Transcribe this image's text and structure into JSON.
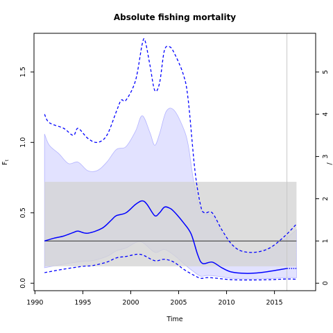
{
  "chart_data": {
    "type": "line",
    "title": "Absolute fishing mortality",
    "xlabel": "Time",
    "ylabel_main": "F",
    "ylabel_sub": "t",
    "xlim": [
      1989.9,
      2019.3
    ],
    "ylim": [
      -0.053,
      1.775
    ],
    "ylim_right": [
      -0.177,
      5.917
    ],
    "x_ticks": [
      1990,
      1995,
      2000,
      2005,
      2010,
      2015
    ],
    "y_ticks": [
      0.0,
      0.5,
      1.0,
      1.5
    ],
    "y_tick_labels": [
      "0.0",
      "0.5",
      "1.0",
      "1.5"
    ],
    "y_right_ticks": [
      0,
      1,
      2,
      3,
      4,
      5
    ],
    "y_right_tick_labels": [
      "0",
      "1",
      "2",
      "3",
      "4",
      "5"
    ],
    "right_axis_partial_label": "/",
    "ref_band": {
      "x": [
        1991.0,
        2017.3
      ],
      "y": [
        0.12,
        0.72
      ]
    },
    "ref_line": {
      "y": 0.3,
      "x": [
        1991.0,
        2017.3
      ]
    },
    "vertical_line": {
      "x": 2016.3
    },
    "series": [
      {
        "role": "median",
        "x": [
          1991.0,
          1992.0,
          1993.0,
          1994.0,
          1994.5,
          1995.5,
          1997.0,
          1998.0,
          1998.5,
          1999.5,
          2000.5,
          2001.2,
          2001.7,
          2002.5,
          2003.0,
          2003.5,
          2004.0,
          2004.5,
          2005.5,
          2006.3,
          2007.0,
          2007.5,
          2008.5,
          2009.5,
          2010.5,
          2012.0,
          2013.5,
          2015.0,
          2016.3
        ],
        "values": [
          0.3,
          0.32,
          0.335,
          0.36,
          0.37,
          0.355,
          0.39,
          0.45,
          0.48,
          0.5,
          0.56,
          0.585,
          0.56,
          0.48,
          0.5,
          0.54,
          0.535,
          0.51,
          0.43,
          0.35,
          0.2,
          0.14,
          0.15,
          0.11,
          0.08,
          0.07,
          0.075,
          0.09,
          0.105
        ]
      },
      {
        "role": "median_projection",
        "x": [
          2016.3,
          2017.3
        ],
        "values": [
          0.105,
          0.105
        ]
      },
      {
        "role": "upper_ci",
        "x": [
          1991.0,
          1991.5,
          1993.0,
          1994.0,
          1994.5,
          1995.5,
          1996.5,
          1997.5,
          1998.5,
          1999.0,
          1999.5,
          2000.5,
          2001.2,
          2001.5,
          2002.0,
          2002.5,
          2003.0,
          2003.5,
          2004.0,
          2004.5,
          2005.5,
          2006.0,
          2006.7,
          2007.3,
          2007.7,
          2008.5,
          2009.5,
          2010.5,
          2011.5,
          2013.0,
          2014.5,
          2016.0,
          2017.3
        ],
        "values": [
          1.2,
          1.14,
          1.1,
          1.05,
          1.1,
          1.03,
          1.0,
          1.05,
          1.22,
          1.3,
          1.3,
          1.44,
          1.7,
          1.72,
          1.55,
          1.37,
          1.42,
          1.65,
          1.68,
          1.64,
          1.48,
          1.3,
          0.8,
          0.55,
          0.5,
          0.5,
          0.38,
          0.28,
          0.23,
          0.22,
          0.25,
          0.33,
          0.42
        ]
      },
      {
        "role": "lower_ci",
        "x": [
          1991.0,
          1993.0,
          1995.0,
          1996.0,
          1997.5,
          1998.5,
          1999.5,
          2001.0,
          2002.5,
          2003.5,
          2004.5,
          2005.5,
          2006.5,
          2007.3,
          2008.0,
          2009.0,
          2010.5,
          2012.5,
          2014.5,
          2016.3,
          2017.3
        ],
        "values": [
          0.075,
          0.1,
          0.12,
          0.125,
          0.15,
          0.18,
          0.19,
          0.205,
          0.16,
          0.17,
          0.15,
          0.1,
          0.06,
          0.035,
          0.04,
          0.035,
          0.025,
          0.023,
          0.025,
          0.03,
          0.028
        ]
      },
      {
        "role": "ci_band_upper",
        "x": [
          1991.0,
          1991.5,
          1992.5,
          1993.5,
          1994.5,
          1995.5,
          1996.5,
          1997.5,
          1998.5,
          1999.5,
          2000.5,
          2001.2,
          2002.0,
          2002.5,
          2003.0,
          2003.7,
          2004.5,
          2005.5,
          2006.0,
          2006.5,
          2007.0,
          2007.5,
          2008.5,
          2009.5,
          2010.5,
          2012.0,
          2014.0,
          2016.0,
          2017.3
        ],
        "values": [
          1.06,
          0.98,
          0.92,
          0.85,
          0.86,
          0.8,
          0.8,
          0.86,
          0.95,
          0.97,
          1.08,
          1.19,
          1.07,
          0.98,
          1.06,
          1.22,
          1.23,
          1.1,
          0.98,
          0.75,
          0.58,
          0.5,
          0.48,
          0.36,
          0.28,
          0.22,
          0.24,
          0.31,
          0.38
        ]
      },
      {
        "role": "ci_band_lower",
        "x": [
          1991.0,
          1993.0,
          1995.0,
          1996.0,
          1997.5,
          1998.5,
          1999.5,
          2001.0,
          2002.5,
          2003.5,
          2004.5,
          2005.5,
          2006.5,
          2007.3,
          2008.0,
          2009.0,
          2010.5,
          2012.5,
          2014.5,
          2016.3,
          2017.3
        ],
        "values": [
          0.11,
          0.135,
          0.155,
          0.16,
          0.19,
          0.23,
          0.25,
          0.295,
          0.22,
          0.24,
          0.2,
          0.14,
          0.085,
          0.05,
          0.055,
          0.05,
          0.035,
          0.03,
          0.033,
          0.04,
          0.038
        ]
      }
    ],
    "colors": {
      "line": "#0000ff",
      "ci_fill": "#e2e2ff",
      "ci_fill_stroke": "#b4b4ff",
      "ref_band": "#d3d3d3",
      "ref_band_overlap": "#bbbbd9",
      "ref_line": "#333333",
      "vline": "#c8c8c8",
      "axis": "#000000"
    }
  }
}
